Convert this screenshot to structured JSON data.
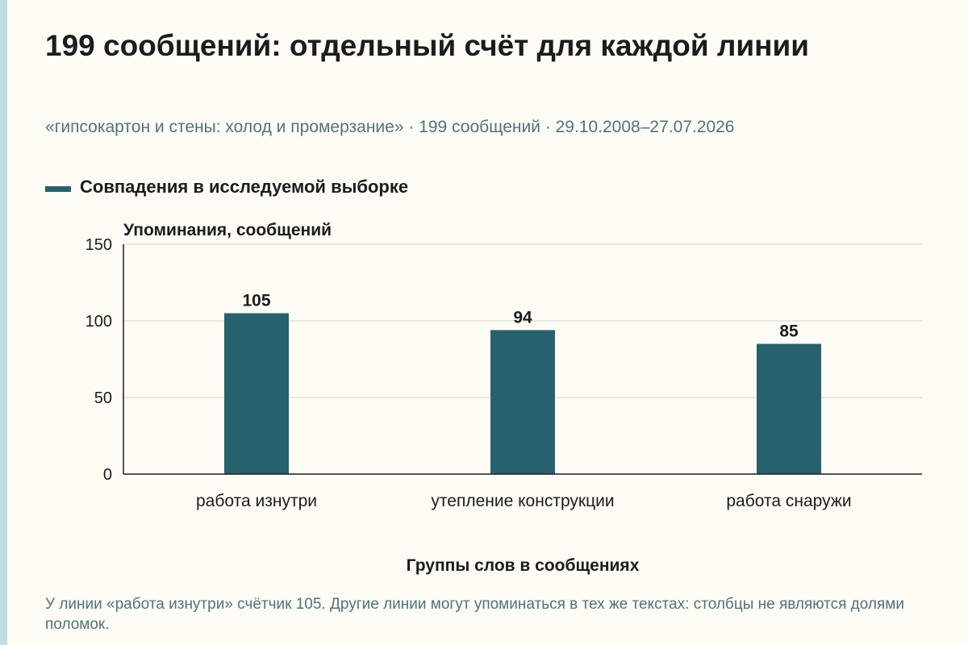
{
  "header": {
    "title": "199 сообщений: отдельный счёт для каждой линии",
    "subtitle": "«гипсокартон и стены: холод и промерзание» · 199 сообщений · 29.10.2008–27.07.2026"
  },
  "legend": {
    "label": "Совпадения в исследуемой выборке",
    "color": "#27616d"
  },
  "chart_data": {
    "type": "bar",
    "categories": [
      "работа изнутри",
      "утепление конструкции",
      "работа снаружи"
    ],
    "series": [
      {
        "name": "Совпадения в исследуемой выборке",
        "values": [
          105,
          94,
          85
        ]
      }
    ],
    "value_labels": [
      "105",
      "94",
      "85"
    ],
    "ylabel": "Упоминания, сообщений",
    "xlabel": "Группы слов в сообщениях",
    "ylim": [
      0,
      150
    ],
    "yticks": [
      0,
      50,
      100,
      150
    ],
    "ytick_labels": [
      "0",
      "50",
      "100",
      "150"
    ],
    "grid": true,
    "legend_position": "top-left",
    "bar_color": "#27616d"
  },
  "note": "У линии «работа изнутри» счётчик 105. Другие линии могут упоминаться в тех же текстах: столбцы не являются долями поломок."
}
